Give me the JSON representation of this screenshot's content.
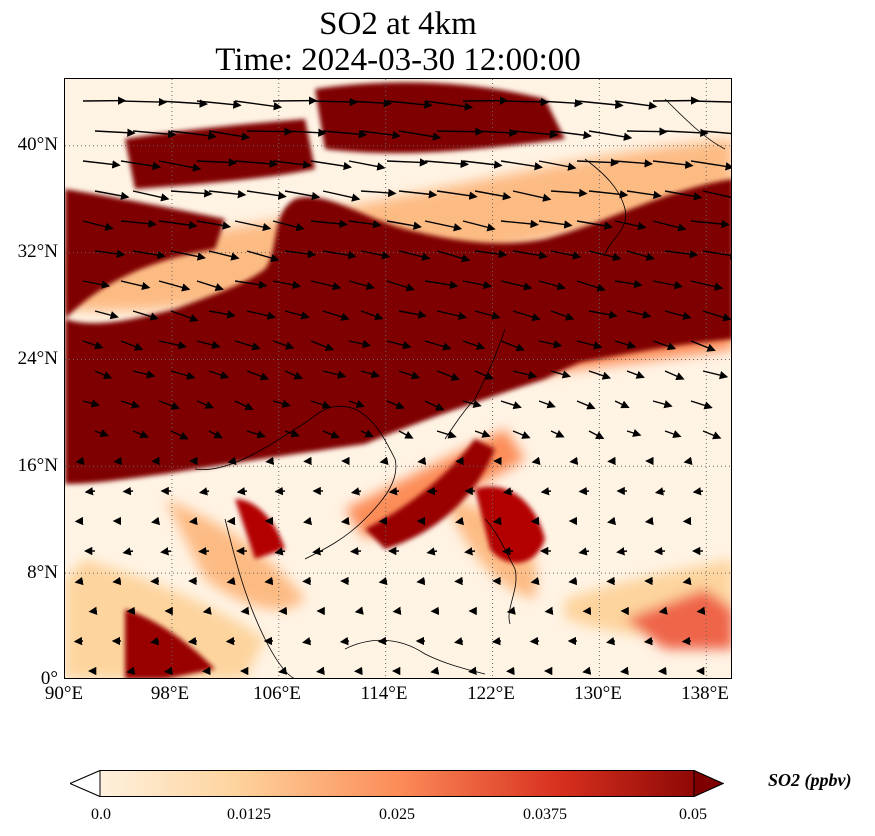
{
  "title": {
    "line1": "SO2 at 4km",
    "line2": "Time: 2024-03-30 12:00:00"
  },
  "map": {
    "region": "East and Southeast Asia",
    "lon_range": [
      90,
      140
    ],
    "lat_range": [
      0,
      45
    ],
    "lat_ticks": [
      "40°N",
      "32°N",
      "24°N",
      "16°N",
      "8°N",
      "0°"
    ],
    "lon_ticks": [
      "90°E",
      "98°E",
      "106°E",
      "114°E",
      "122°E",
      "130°E",
      "138°E"
    ],
    "gridlines": "dotted",
    "overlay": "wind vectors (arrows)",
    "field": "SO2 concentration, filled color map"
  },
  "colorbar": {
    "label": "SO2 (ppbv)",
    "ticks": [
      "0.0",
      "0.0125",
      "0.025",
      "0.0375",
      "0.05"
    ],
    "range": [
      0.0,
      0.05
    ],
    "extend": "both",
    "colormap": "OrRd",
    "colors": [
      "#fff7ec",
      "#fdd49e",
      "#fc8d59",
      "#d7301f",
      "#7f0000"
    ]
  }
}
